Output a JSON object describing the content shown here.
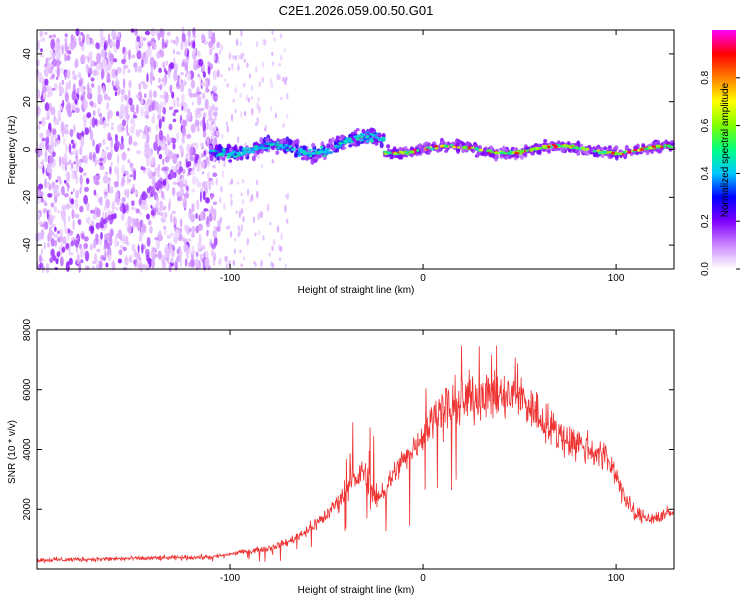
{
  "title": "C2E1.2026.059.00.50.G01",
  "chart_data": [
    {
      "type": "heatmap",
      "name": "spectrogram",
      "xlabel": "Height of straight line (km)",
      "ylabel": "Frequency (Hz)",
      "xlim": [
        -200,
        130
      ],
      "ylim": [
        -50,
        50
      ],
      "xticks": [
        -100,
        0,
        100
      ],
      "yticks": [
        -40,
        -20,
        0,
        20,
        40
      ],
      "colorbar": {
        "label": "Normalized spectral amplitude",
        "range": [
          0,
          1
        ],
        "ticks": [
          "0.0",
          "0.2",
          "0.4",
          "0.6",
          "0.8"
        ],
        "colors": [
          "#ffffff",
          "#cc88ff",
          "#7f00ff",
          "#0000ff",
          "#00c8ff",
          "#00ff80",
          "#80ff00",
          "#ffff00",
          "#ff8000",
          "#ff0000",
          "#ff00ff"
        ]
      },
      "features": {
        "noise_region_x": [
          -200,
          -110
        ],
        "doppler_trace_x": [
          -110,
          130
        ],
        "doppler_trace_freq_hz": 0,
        "diagonal_trace": {
          "x": [
            -200,
            -110
          ],
          "freq": [
            -50,
            0
          ]
        }
      }
    },
    {
      "type": "line",
      "name": "snr",
      "xlabel": "Height of straight line (km)",
      "ylabel": "SNR (10 * v/v)",
      "xlim": [
        -200,
        130
      ],
      "ylim": [
        0,
        8000
      ],
      "xticks": [
        -100,
        0,
        100
      ],
      "yticks": [
        2000,
        4000,
        6000,
        8000
      ],
      "color": "#ee3333",
      "trend": {
        "x": [
          -200,
          -150,
          -110,
          -90,
          -80,
          -70,
          -60,
          -50,
          -45,
          -40,
          -35,
          -30,
          -25,
          -20,
          -15,
          -10,
          -5,
          0,
          5,
          10,
          20,
          30,
          40,
          50,
          60,
          70,
          80,
          90,
          95,
          100,
          105,
          110,
          120,
          130
        ],
        "y": [
          300,
          350,
          400,
          600,
          700,
          900,
          1300,
          1800,
          2200,
          2600,
          3000,
          3300,
          2400,
          2600,
          3200,
          3700,
          4000,
          4600,
          5000,
          5300,
          5600,
          5900,
          5700,
          5800,
          5100,
          4500,
          4200,
          3900,
          3700,
          3200,
          2300,
          1800,
          1700,
          1900
        ]
      }
    }
  ]
}
